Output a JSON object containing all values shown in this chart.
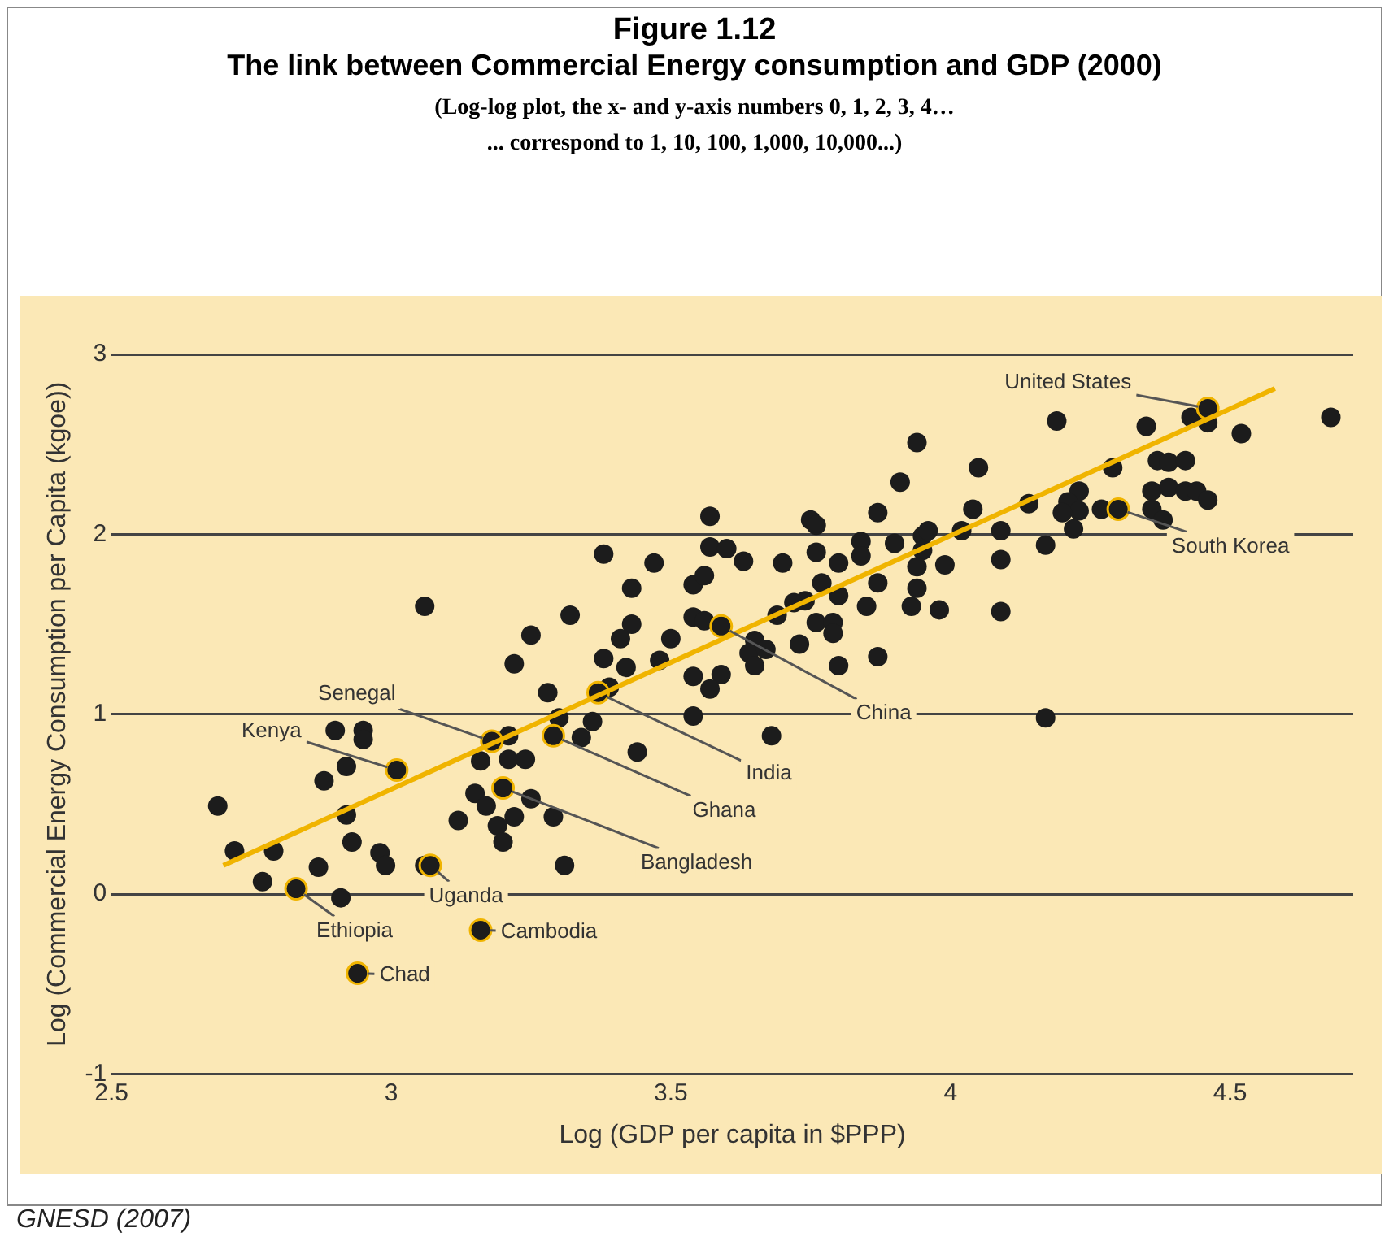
{
  "chart_data": {
    "type": "scatter",
    "title": "Figure 1.12",
    "subtitle": "The link between Commercial Energy consumption and GDP  (2000)",
    "xlabel": "Log (GDP per capita in $PPP)",
    "ylabel": "Log (Commercial Energy Consumption per Capita (kgoe))",
    "annotations": [
      "(Log-log plot, the x- and y-axis numbers 0, 1, 2, 3, 4…\n... correspond to 1, 10, 100, 1,000, 10,000...)",
      "GNESD (2007)",
      {
        "text": "United States",
        "x": 4.46,
        "y": 2.7
      },
      {
        "text": "South Korea",
        "x": 4.3,
        "y": 2.14
      },
      {
        "text": "China",
        "x": 3.59,
        "y": 1.49
      },
      {
        "text": "India",
        "x": 3.37,
        "y": 1.12
      },
      {
        "text": "Ghana",
        "x": 3.29,
        "y": 0.88
      },
      {
        "text": "Senegal",
        "x": 3.18,
        "y": 0.85
      },
      {
        "text": "Kenya",
        "x": 3.01,
        "y": 0.69
      },
      {
        "text": "Bangladesh",
        "x": 3.2,
        "y": 0.59
      },
      {
        "text": "Uganda",
        "x": 3.07,
        "y": 0.16
      },
      {
        "text": "Ethiopia",
        "x": 2.83,
        "y": 0.03
      },
      {
        "text": "Cambodia",
        "x": 3.16,
        "y": -0.2
      },
      {
        "text": "Chad",
        "x": 2.94,
        "y": -0.44
      }
    ],
    "xlim": [
      2.5,
      4.72
    ],
    "ylim": [
      -1,
      3
    ],
    "xticks": [
      2.5,
      3,
      3.5,
      4,
      4.5
    ],
    "yticks": [
      -1,
      0,
      1,
      2,
      3
    ],
    "grid": "y",
    "legend": false,
    "series": [
      {
        "color": "#1c1c1c",
        "marker": "circle",
        "x": [
          2.69,
          2.72,
          2.79,
          2.77,
          2.83,
          2.87,
          2.91,
          2.9,
          2.95,
          2.95,
          2.92,
          2.88,
          3.01,
          2.92,
          2.93,
          2.98,
          2.99,
          3.06,
          3.07,
          3.16,
          2.94,
          3.06,
          3.25,
          3.32,
          3.22,
          3.28,
          3.43,
          3.43,
          3.41,
          3.38,
          3.42,
          3.48,
          3.5,
          3.39,
          3.37,
          3.3,
          3.36,
          3.29,
          3.34,
          3.44,
          3.18,
          3.21,
          3.16,
          3.21,
          3.24,
          3.15,
          3.2,
          3.17,
          3.25,
          3.12,
          3.22,
          3.19,
          3.2,
          3.29,
          3.31,
          3.57,
          3.38,
          3.47,
          3.57,
          3.6,
          3.63,
          3.7,
          3.75,
          3.76,
          3.87,
          3.91,
          3.84,
          3.84,
          3.9,
          3.95,
          3.96,
          3.95,
          3.76,
          3.8,
          3.77,
          3.8,
          3.87,
          3.85,
          3.93,
          3.94,
          3.98,
          3.54,
          3.56,
          3.54,
          3.56,
          3.59,
          3.69,
          3.72,
          3.74,
          3.76,
          3.79,
          3.79,
          3.65,
          3.64,
          3.67,
          3.65,
          3.73,
          3.8,
          3.87,
          3.54,
          3.59,
          3.57,
          3.54,
          3.68,
          3.94,
          4.05,
          4.19,
          4.35,
          4.43,
          4.46,
          4.46,
          4.52,
          4.68,
          4.29,
          4.37,
          4.39,
          4.42,
          4.23,
          4.21,
          4.23,
          4.2,
          4.22,
          4.27,
          4.3,
          4.36,
          4.39,
          4.42,
          4.44,
          4.46,
          4.36,
          4.38,
          4.14,
          4.04,
          4.09,
          4.17,
          4.09,
          4.02,
          3.99,
          3.94,
          4.09,
          4.17
        ],
        "values": [
          0.49,
          0.24,
          0.24,
          0.07,
          0.03,
          0.15,
          -0.02,
          0.91,
          0.91,
          0.86,
          0.71,
          0.63,
          0.69,
          0.44,
          0.29,
          0.23,
          0.16,
          0.16,
          0.16,
          -0.2,
          -0.44,
          1.6,
          1.44,
          1.55,
          1.28,
          1.12,
          1.7,
          1.5,
          1.42,
          1.31,
          1.26,
          1.3,
          1.42,
          1.15,
          1.12,
          0.98,
          0.96,
          0.88,
          0.87,
          0.79,
          0.85,
          0.88,
          0.74,
          0.75,
          0.75,
          0.56,
          0.59,
          0.49,
          0.53,
          0.41,
          0.43,
          0.38,
          0.29,
          0.43,
          0.16,
          2.1,
          1.89,
          1.84,
          1.93,
          1.92,
          1.85,
          1.84,
          2.08,
          2.05,
          2.12,
          2.29,
          1.96,
          1.88,
          1.95,
          1.99,
          2.02,
          1.91,
          1.9,
          1.84,
          1.73,
          1.66,
          1.73,
          1.6,
          1.6,
          1.7,
          1.58,
          1.72,
          1.77,
          1.54,
          1.52,
          1.49,
          1.55,
          1.62,
          1.63,
          1.51,
          1.51,
          1.45,
          1.41,
          1.34,
          1.36,
          1.27,
          1.39,
          1.27,
          1.32,
          1.21,
          1.22,
          1.14,
          0.99,
          0.88,
          2.51,
          2.37,
          2.63,
          2.6,
          2.65,
          2.7,
          2.62,
          2.56,
          2.65,
          2.37,
          2.41,
          2.4,
          2.41,
          2.24,
          2.18,
          2.13,
          2.12,
          2.03,
          2.14,
          2.14,
          2.24,
          2.26,
          2.24,
          2.24,
          2.19,
          2.14,
          2.08,
          2.17,
          2.14,
          2.02,
          1.94,
          1.86,
          2.02,
          1.83,
          1.82,
          1.57,
          0.98
        ]
      },
      {
        "type": "line",
        "color": "#f0b400",
        "marker": "none",
        "line_style": "solid",
        "x": [
          2.7,
          4.58
        ],
        "values": [
          0.16,
          2.81
        ]
      }
    ]
  }
}
